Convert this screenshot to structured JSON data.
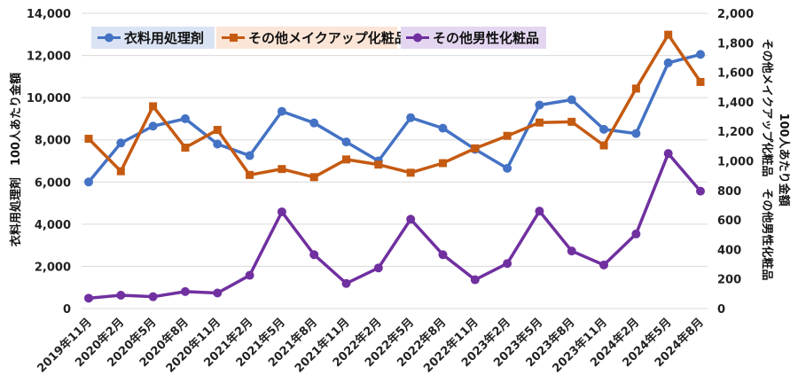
{
  "chart_data": {
    "type": "line",
    "categories": [
      "2019年11月",
      "2020年2月",
      "2020年5月",
      "2020年8月",
      "2020年11月",
      "2021年2月",
      "2021年5月",
      "2021年8月",
      "2021年11月",
      "2022年2月",
      "2022年5月",
      "2022年8月",
      "2022年11月",
      "2023年2月",
      "2023年5月",
      "2023年8月",
      "2023年11月",
      "2024年2月",
      "2024年5月",
      "2024年8月"
    ],
    "ylabel_left": "衣料用処理剤　100人あたり金額",
    "ylabel_right_line1": "その他メイクアップ化粧品　その他男性化粧品",
    "ylabel_right_line2": "100人あたり金額",
    "ylim_left": [
      0,
      14000
    ],
    "ylim_right": [
      0,
      2000
    ],
    "yticks_left": [
      "0",
      "2,000",
      "4,000",
      "6,000",
      "8,000",
      "10,000",
      "12,000",
      "14,000"
    ],
    "yticks_right": [
      "0",
      "200",
      "400",
      "600",
      "800",
      "1,000",
      "1,200",
      "1,400",
      "1,600",
      "1,800",
      "2,000"
    ],
    "grid": true,
    "legend_position": "top-left",
    "series": [
      {
        "name": "衣料用処理剤",
        "axis": "left",
        "color": "#4472C4",
        "legend_bg": "#DAE3F3",
        "marker": "circle",
        "values": [
          6000,
          7850,
          8650,
          9000,
          7800,
          7250,
          9350,
          8800,
          7900,
          7000,
          9050,
          8550,
          7550,
          6650,
          9650,
          9900,
          8500,
          8300,
          11650,
          12050
        ]
      },
      {
        "name": "その他メイクアップ化粧品",
        "axis": "right",
        "color": "#C55A11",
        "legend_bg": "#FBE5D6",
        "marker": "square",
        "values": [
          1150,
          930,
          1370,
          1090,
          1210,
          905,
          945,
          890,
          1010,
          975,
          920,
          985,
          1085,
          1170,
          1260,
          1265,
          1105,
          1490,
          1855,
          1535
        ]
      },
      {
        "name": "その他男性化粧品",
        "axis": "right",
        "color": "#7030A0",
        "legend_bg": "#E4D6F1",
        "marker": "circle",
        "values": [
          70,
          90,
          80,
          115,
          105,
          225,
          655,
          365,
          170,
          275,
          605,
          365,
          195,
          305,
          660,
          390,
          295,
          505,
          1050,
          795
        ]
      }
    ]
  }
}
